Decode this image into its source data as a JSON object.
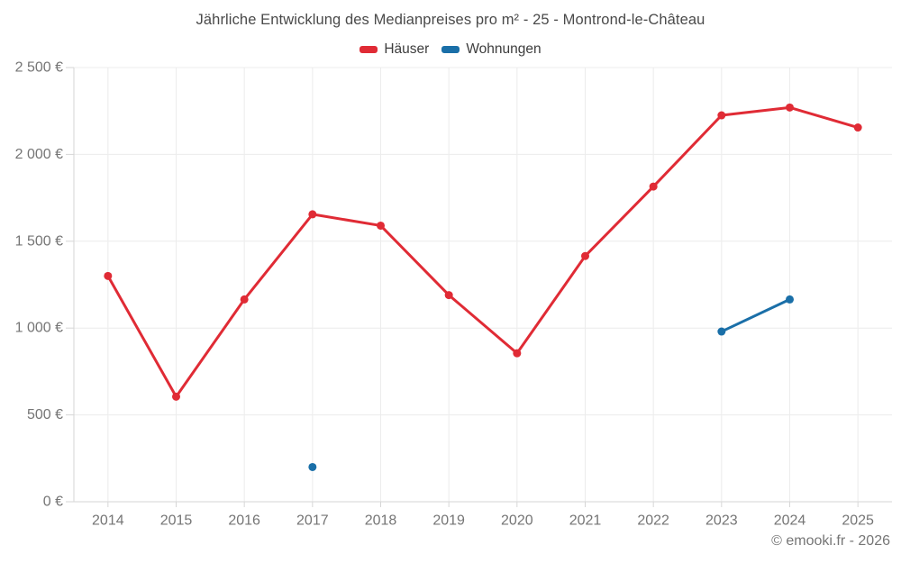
{
  "chart_data": {
    "type": "line",
    "title": "Jährliche Entwicklung des Medianpreises pro m² - 25 - Montrond-le-Château",
    "x": [
      "2014",
      "2015",
      "2016",
      "2017",
      "2018",
      "2019",
      "2020",
      "2021",
      "2022",
      "2023",
      "2024",
      "2025"
    ],
    "series": [
      {
        "name": "Häuser",
        "color": "#e02b35",
        "values": [
          1300,
          605,
          1165,
          1655,
          1590,
          1190,
          855,
          1415,
          1815,
          2225,
          2270,
          2155
        ]
      },
      {
        "name": "Wohnungen",
        "color": "#1a6fa8",
        "values": [
          null,
          null,
          null,
          200,
          null,
          null,
          null,
          null,
          null,
          980,
          1165,
          null
        ]
      }
    ],
    "ylim": [
      0,
      2500
    ],
    "yticks": [
      {
        "value": 0,
        "label": "0 €"
      },
      {
        "value": 500,
        "label": "500 €"
      },
      {
        "value": 1000,
        "label": "1 000 €"
      },
      {
        "value": 1500,
        "label": "1 500 €"
      },
      {
        "value": 2000,
        "label": "2 000 €"
      },
      {
        "value": 2500,
        "label": "2 500 €"
      }
    ],
    "grid": true,
    "legend_position": "top"
  },
  "footer": {
    "text": "© emooki.fr - 2026"
  },
  "colors": {
    "grid": "#ececec",
    "axis": "#d6d6d6",
    "tick_label": "#757575",
    "title_text": "#4a4a4a",
    "legend_text": "#3d3d3d",
    "footer_text": "#767676",
    "background": "#ffffff"
  }
}
